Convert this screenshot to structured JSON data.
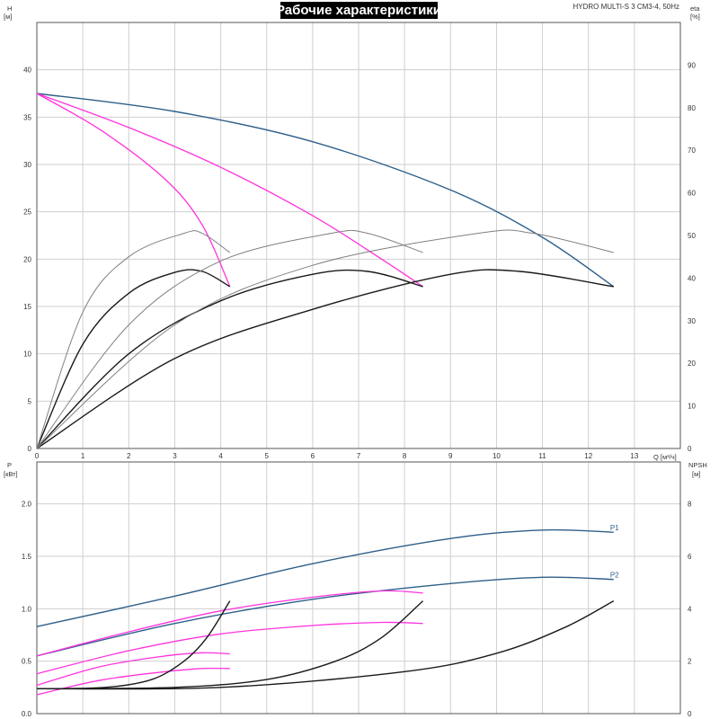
{
  "title": "Рабочие характеристики",
  "model": "HYDRO MULTI-S 3 CM3-4, 50Hz",
  "colors": {
    "blue": "#2e5f8a",
    "magenta": "#ff33dd",
    "black": "#1a1a1a",
    "gray": "#808080",
    "grid": "#cfcfcf"
  },
  "chart_data": [
    {
      "type": "line",
      "name": "head-efficiency",
      "xlabel": "Q [м³/ч]",
      "ylabel": "H [м]",
      "y2label": "eta [%]",
      "xlim": [
        0,
        14
      ],
      "ylim": [
        0,
        45
      ],
      "y2lim": [
        0,
        100
      ],
      "x_ticks": [
        "0",
        "1",
        "2",
        "3",
        "4",
        "5",
        "6",
        "7",
        "8",
        "9",
        "10",
        "11",
        "12",
        "13"
      ],
      "y_ticks": [
        "0",
        "5",
        "10",
        "15",
        "20",
        "25",
        "30",
        "35",
        "40"
      ],
      "y2_ticks": [
        "0",
        "10",
        "20",
        "30",
        "40",
        "50",
        "60",
        "70",
        "80",
        "90"
      ],
      "series": [
        {
          "color": "blue",
          "axis": "y",
          "points": [
            [
              0,
              37.5
            ],
            [
              3,
              35.6
            ],
            [
              6,
              32.4
            ],
            [
              9,
              27.3
            ],
            [
              11,
              22.3
            ],
            [
              12.55,
              17.1
            ]
          ]
        },
        {
          "color": "magenta",
          "axis": "y",
          "points": [
            [
              0,
              37.5
            ],
            [
              2,
              33.9
            ],
            [
              4,
              29.7
            ],
            [
              6,
              24.6
            ],
            [
              7.5,
              20.0
            ],
            [
              8.4,
              17.1
            ]
          ]
        },
        {
          "color": "magenta",
          "axis": "y",
          "points": [
            [
              0,
              37.5
            ],
            [
              1.4,
              33.6
            ],
            [
              2.8,
              28.4
            ],
            [
              3.6,
              23.6
            ],
            [
              4.2,
              17.1
            ]
          ]
        },
        {
          "color": "black",
          "axis": "y",
          "points": [
            [
              0,
              0
            ],
            [
              1,
              11.0
            ],
            [
              2,
              16.4
            ],
            [
              3,
              18.6
            ],
            [
              3.6,
              18.7
            ],
            [
              4.2,
              17.1
            ]
          ]
        },
        {
          "color": "black",
          "axis": "y",
          "points": [
            [
              0,
              0
            ],
            [
              2,
              10.0
            ],
            [
              4,
              15.6
            ],
            [
              6,
              18.4
            ],
            [
              7.2,
              18.7
            ],
            [
              8.4,
              17.1
            ]
          ]
        },
        {
          "color": "black",
          "axis": "y",
          "points": [
            [
              0,
              0
            ],
            [
              3,
              9.5
            ],
            [
              6,
              14.7
            ],
            [
              9,
              18.4
            ],
            [
              10.5,
              18.7
            ],
            [
              12.55,
              17.1
            ]
          ]
        },
        {
          "color": "gray",
          "axis": "y2",
          "points": [
            [
              0,
              0
            ],
            [
              1,
              32
            ],
            [
              2,
              45
            ],
            [
              3.2,
              50.5
            ],
            [
              3.6,
              50.5
            ],
            [
              4.2,
              46
            ]
          ]
        },
        {
          "color": "gray",
          "axis": "y2",
          "points": [
            [
              0,
              0
            ],
            [
              2,
              29
            ],
            [
              4,
              44
            ],
            [
              6.4,
              50.5
            ],
            [
              7.2,
              50.5
            ],
            [
              8.4,
              46
            ]
          ]
        },
        {
          "color": "gray",
          "axis": "y2",
          "points": [
            [
              0,
              0
            ],
            [
              3,
              29
            ],
            [
              6,
              43
            ],
            [
              9.6,
              50.5
            ],
            [
              10.8,
              50.5
            ],
            [
              12.55,
              46
            ]
          ]
        }
      ]
    },
    {
      "type": "line",
      "name": "power-npsh",
      "ylabel": "P [кВт]",
      "y2label": "NPSH [м]",
      "xlim": [
        0,
        14
      ],
      "ylim": [
        0,
        2.4
      ],
      "y2lim": [
        0,
        9.6
      ],
      "y_ticks": [
        "0.0",
        "0.5",
        "1.0",
        "1.5",
        "2.0"
      ],
      "y2_ticks": [
        "0",
        "2",
        "4",
        "6",
        "8"
      ],
      "series": [
        {
          "name": "P1",
          "color": "blue",
          "axis": "y",
          "points": [
            [
              0,
              0.83
            ],
            [
              3,
              1.12
            ],
            [
              6,
              1.43
            ],
            [
              9,
              1.67
            ],
            [
              11,
              1.75
            ],
            [
              12.55,
              1.73
            ]
          ]
        },
        {
          "name": "P2",
          "color": "blue",
          "axis": "y",
          "points": [
            [
              0,
              0.55
            ],
            [
              3,
              0.86
            ],
            [
              6,
              1.09
            ],
            [
              9,
              1.24
            ],
            [
              11,
              1.3
            ],
            [
              12.55,
              1.28
            ]
          ]
        },
        {
          "color": "magenta",
          "axis": "y",
          "points": [
            [
              0,
              0.55
            ],
            [
              2,
              0.78
            ],
            [
              4,
              0.98
            ],
            [
              6,
              1.11
            ],
            [
              7.5,
              1.17
            ],
            [
              8.4,
              1.15
            ]
          ]
        },
        {
          "color": "magenta",
          "axis": "y",
          "points": [
            [
              0,
              0.38
            ],
            [
              2,
              0.6
            ],
            [
              4,
              0.76
            ],
            [
              6,
              0.84
            ],
            [
              7.5,
              0.87
            ],
            [
              8.4,
              0.86
            ]
          ]
        },
        {
          "color": "magenta",
          "axis": "y",
          "points": [
            [
              0,
              0.27
            ],
            [
              1.4,
              0.45
            ],
            [
              2.8,
              0.55
            ],
            [
              3.6,
              0.58
            ],
            [
              4.2,
              0.57
            ]
          ]
        },
        {
          "color": "magenta",
          "axis": "y",
          "points": [
            [
              0,
              0.18
            ],
            [
              1.4,
              0.32
            ],
            [
              2.8,
              0.4
            ],
            [
              3.6,
              0.43
            ],
            [
              4.2,
              0.43
            ]
          ]
        },
        {
          "color": "black",
          "axis": "y2",
          "points": [
            [
              0,
              0.95
            ],
            [
              1.5,
              1.0
            ],
            [
              2.5,
              1.3
            ],
            [
              3.2,
              2.0
            ],
            [
              3.7,
              2.9
            ],
            [
              4.2,
              4.3
            ]
          ]
        },
        {
          "color": "black",
          "axis": "y2",
          "points": [
            [
              0,
              0.95
            ],
            [
              3,
              1.0
            ],
            [
              5,
              1.3
            ],
            [
              6.5,
              2.0
            ],
            [
              7.5,
              2.9
            ],
            [
              8.4,
              4.3
            ]
          ]
        },
        {
          "color": "black",
          "axis": "y2",
          "points": [
            [
              0,
              0.95
            ],
            [
              4,
              1.0
            ],
            [
              8,
              1.6
            ],
            [
              10,
              2.3
            ],
            [
              11.5,
              3.3
            ],
            [
              12.55,
              4.3
            ]
          ]
        }
      ]
    }
  ]
}
